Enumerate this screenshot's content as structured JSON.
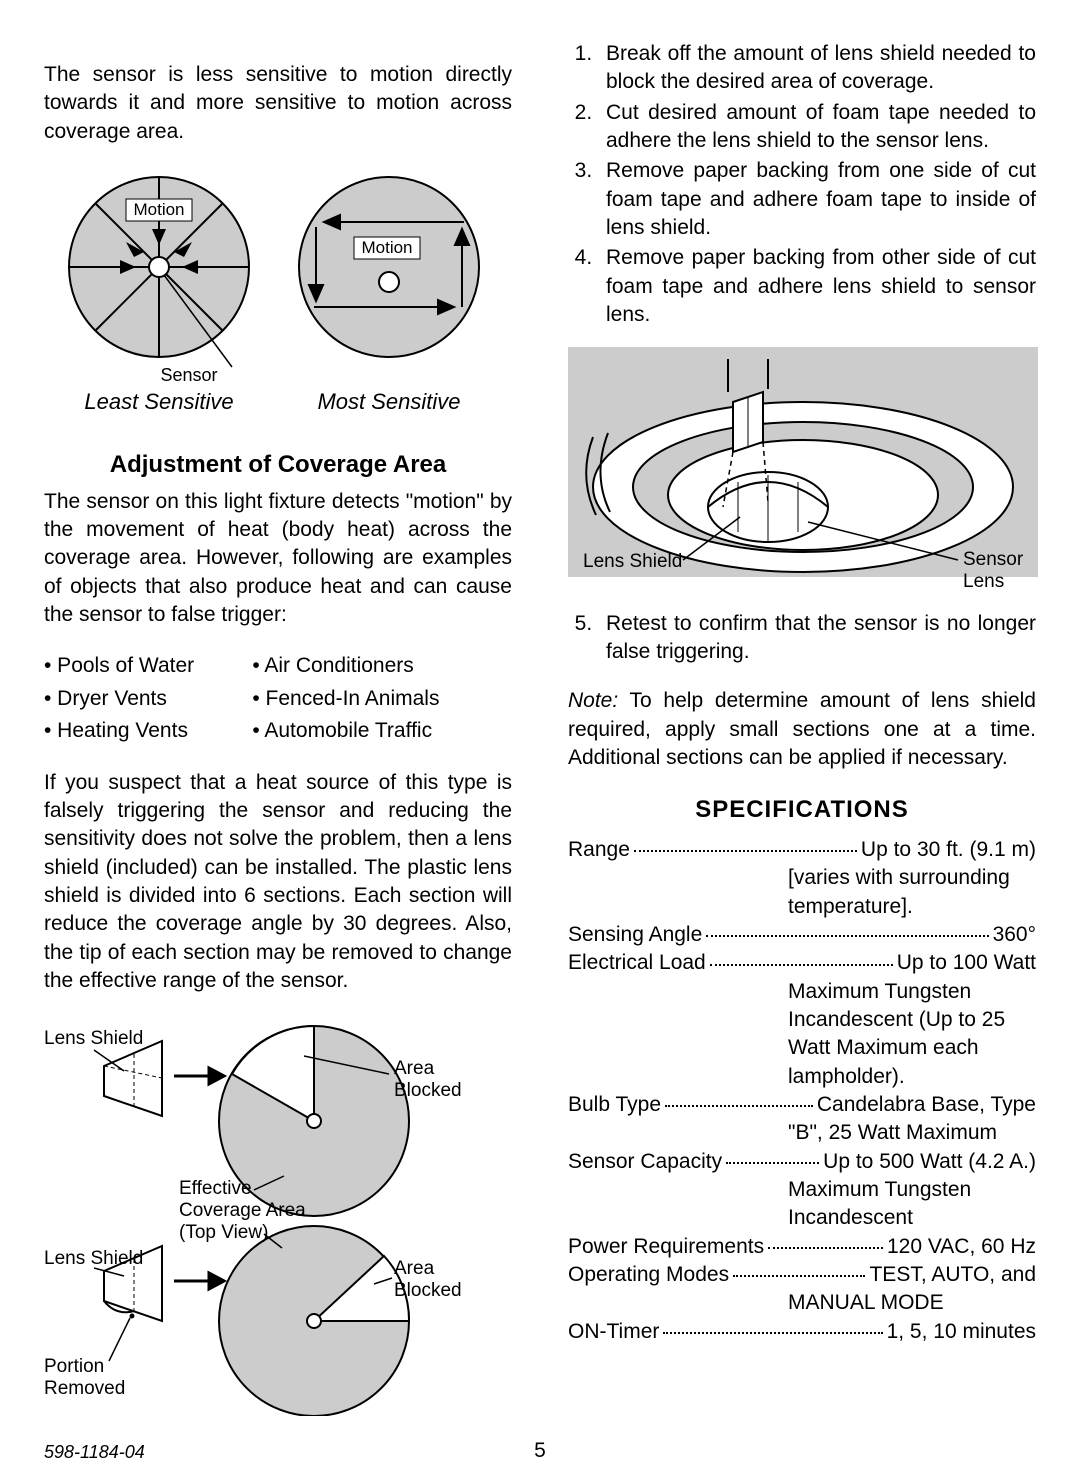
{
  "left": {
    "intro": "The sensor is less sensitive to motion directly towards it and more sensitive to motion across coverage area.",
    "diag1": {
      "motion_label": "Motion",
      "sensor_label": "Sensor",
      "least": "Least Sensitive",
      "most": "Most Sensitive",
      "circle_fill": "#cccccc",
      "stroke": "#000000"
    },
    "heading_adj": "Adjustment of Coverage Area",
    "adj_p1": "The sensor on this light fixture detects \"motion\" by the movement of heat (body heat) across the coverage area. However, following are examples of objects that also produce heat and can cause the sensor to false trigger:",
    "bullets": [
      [
        "• Pools of Water",
        "• Air Conditioners"
      ],
      [
        "• Dryer Vents",
        "• Fenced-In Animals"
      ],
      [
        "• Heating Vents",
        "• Automobile Traffic"
      ]
    ],
    "adj_p2": "If you suspect that a heat source of this type is falsely triggering the sensor and reducing the sensitivity does not solve the problem, then a lens shield (included) can be installed. The plastic lens shield is divided into 6 sections. Each section will reduce the coverage angle by 30 degrees. Also, the tip of each section may be removed to change the effective range of the sensor.",
    "diag2": {
      "lens_shield": "Lens Shield",
      "area_blocked": "Area Blocked",
      "eff_cov_1": "Effective",
      "eff_cov_2": "Coverage Area",
      "eff_cov_3": "(Top View)",
      "portion": "Portion",
      "removed": "Removed",
      "circle_fill": "#cccccc",
      "stroke": "#000000"
    }
  },
  "right": {
    "steps": [
      "Break off the amount of lens shield needed to block the desired area of coverage.",
      "Cut desired amount of foam tape needed to adhere the lens shield to the sensor lens.",
      "Remove paper backing from one side of cut foam tape and adhere foam tape to inside of lens shield.",
      "Remove paper backing from other side of cut foam tape and adhere lens shield to sensor lens."
    ],
    "diag3": {
      "lens_shield": "Lens Shield",
      "sensor": "Sensor",
      "lens": "Lens",
      "fill": "#cccccc",
      "stroke": "#000000"
    },
    "step5": "Retest to confirm that the sensor is no longer false triggering.",
    "note_label": "Note:",
    "note_body": " To help determine amount of lens shield required, apply small sections one at a time. Additional sections can be applied if necessary.",
    "spec_heading": "SPECIFICATIONS",
    "specs": [
      {
        "label": "Range",
        "value": "Up to 30 ft. (9.1 m)",
        "cont": [
          "[varies with surrounding",
          "temperature]."
        ]
      },
      {
        "label": "Sensing Angle",
        "value": "360°",
        "cont": []
      },
      {
        "label": "Electrical Load",
        "value": "Up to 100 Watt",
        "cont": [
          "Maximum Tungsten",
          "Incandescent (Up to 25",
          "Watt Maximum each",
          "lampholder)."
        ]
      },
      {
        "label": "Bulb Type",
        "value": "Candelabra Base, Type",
        "cont": [
          "\"B\", 25 Watt Maximum"
        ]
      },
      {
        "label": "Sensor Capacity",
        "value": "Up to 500 Watt (4.2 A.)",
        "cont": [
          "Maximum Tungsten",
          "Incandescent"
        ]
      },
      {
        "label": "Power Requirements",
        "value": "120 VAC, 60 Hz",
        "cont": []
      },
      {
        "label": "Operating Modes",
        "value": "TEST, AUTO, and",
        "cont": [
          "MANUAL MODE"
        ]
      },
      {
        "label": "ON-Timer",
        "value": "1, 5, 10 minutes",
        "cont": []
      }
    ]
  },
  "footer": {
    "doc": "598-1184-04",
    "page": "5"
  }
}
